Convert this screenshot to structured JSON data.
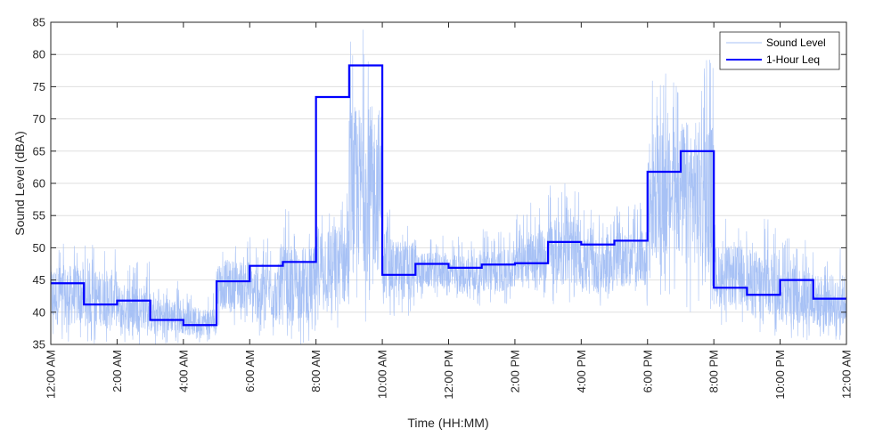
{
  "chart_data": {
    "type": "line",
    "xlabel": "Time (HH:MM)",
    "ylabel": "Sound Level (dBA)",
    "ylim": [
      35,
      85
    ],
    "xlim_hours": [
      0,
      24
    ],
    "y_ticks": [
      35,
      40,
      45,
      50,
      55,
      60,
      65,
      70,
      75,
      80,
      85
    ],
    "x_ticks": [
      {
        "hour": 0,
        "label": "12:00 AM"
      },
      {
        "hour": 2,
        "label": "2:00 AM"
      },
      {
        "hour": 4,
        "label": "4:00 AM"
      },
      {
        "hour": 6,
        "label": "6:00 AM"
      },
      {
        "hour": 8,
        "label": "8:00 AM"
      },
      {
        "hour": 10,
        "label": "10:00 AM"
      },
      {
        "hour": 12,
        "label": "12:00 PM"
      },
      {
        "hour": 14,
        "label": "2:00 PM"
      },
      {
        "hour": 16,
        "label": "4:00 PM"
      },
      {
        "hour": 18,
        "label": "6:00 PM"
      },
      {
        "hour": 20,
        "label": "8:00 PM"
      },
      {
        "hour": 22,
        "label": "10:00 PM"
      },
      {
        "hour": 24,
        "label": "12:00 AM"
      }
    ],
    "grid": "horizontal",
    "legend_position": "top-right",
    "series": [
      {
        "name": "Sound Level",
        "color": "#a7c1f5",
        "style": "thin dense line",
        "envelope_by_hour": {
          "low": [
            35,
            35,
            35,
            35,
            35,
            38,
            36,
            35,
            37,
            38,
            39,
            42,
            41,
            41,
            42,
            41,
            40,
            41,
            42,
            40,
            38,
            36,
            35,
            35
          ],
          "high": [
            52,
            51,
            48,
            45,
            43,
            52,
            52,
            56,
            60,
            85,
            56,
            52,
            52,
            53,
            57,
            60,
            56,
            57,
            78,
            81,
            55,
            55,
            52,
            50
          ]
        }
      },
      {
        "name": "1-Hour Leq",
        "color": "#0000ff",
        "style": "step",
        "hours": [
          0,
          1,
          2,
          3,
          4,
          5,
          6,
          7,
          8,
          9,
          10,
          11,
          12,
          13,
          14,
          15,
          16,
          17,
          18,
          19,
          20,
          21,
          22,
          23
        ],
        "values": [
          44.5,
          41.2,
          41.8,
          38.8,
          38.0,
          44.8,
          47.2,
          47.8,
          73.4,
          78.3,
          45.8,
          47.5,
          46.9,
          47.4,
          47.6,
          50.9,
          50.5,
          51.1,
          61.8,
          65.0,
          43.8,
          42.7,
          45.0,
          42.1
        ]
      }
    ]
  }
}
